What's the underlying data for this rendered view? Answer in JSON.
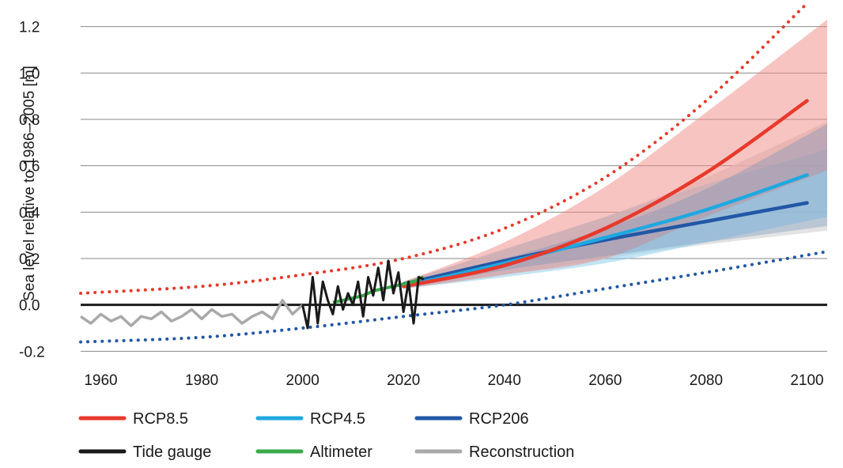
{
  "chart_data": {
    "type": "line",
    "ylabel": "Sea level relative to 1986–2005 [m]",
    "xlabel": "",
    "xlim": [
      1956,
      2104
    ],
    "ylim": [
      -0.25,
      1.25
    ],
    "x_ticks": [
      1960,
      1980,
      2000,
      2020,
      2040,
      2060,
      2080,
      2100
    ],
    "x_tick_labels": [
      "1960",
      "1980",
      "2000",
      "2020",
      "2040",
      "2060",
      "2080",
      "2100"
    ],
    "y_ticks": [
      -0.2,
      0.0,
      0.2,
      0.4,
      0.6,
      0.8,
      1.0,
      1.2
    ],
    "y_tick_labels": [
      "-0.2",
      "0.0",
      "0.2",
      "0.4",
      "0.6",
      "0.8",
      "1.0",
      "1.2"
    ],
    "grid": "horizontal",
    "legend_placement": "bottom",
    "legend": [
      {
        "key": "rcp85",
        "label": "RCP8.5"
      },
      {
        "key": "rcp45",
        "label": "RCP4.5"
      },
      {
        "key": "rcp26",
        "label": "RCP206"
      },
      {
        "key": "tide",
        "label": "Tide gauge"
      },
      {
        "key": "alt",
        "label": "Altimeter"
      },
      {
        "key": "recon",
        "label": "Reconstruction"
      }
    ],
    "colors": {
      "rcp85": "#e8392b",
      "rcp85_band": "#f08a84",
      "rcp45": "#1fa8e0",
      "rcp45_band": "#8fd0ec",
      "rcp26": "#2257a6",
      "rcp26_band": "#6f8fb9",
      "tide": "#1a1a1a",
      "alt": "#3aaa4a",
      "recon": "#a9a9a9",
      "zero_line": "#1a1a1a",
      "grid": "#8a8a8a",
      "gray_band": "#d9d9d9"
    },
    "series": [
      {
        "key": "rcp85",
        "name": "RCP8.5",
        "x": [
          2020,
          2040,
          2060,
          2080,
          2100
        ],
        "y": [
          0.08,
          0.17,
          0.33,
          0.57,
          0.88
        ]
      },
      {
        "key": "rcp45",
        "name": "RCP4.5",
        "x": [
          2020,
          2040,
          2060,
          2080,
          2100
        ],
        "y": [
          0.08,
          0.18,
          0.29,
          0.41,
          0.56
        ]
      },
      {
        "key": "rcp26",
        "name": "RCP206",
        "x": [
          2020,
          2040,
          2060,
          2080,
          2100
        ],
        "y": [
          0.09,
          0.19,
          0.28,
          0.36,
          0.44
        ]
      },
      {
        "key": "tide",
        "name": "Tide gauge",
        "x": [
          2000,
          2001,
          2002,
          2003,
          2004,
          2005,
          2006,
          2007,
          2008,
          2009,
          2010,
          2011,
          2012,
          2013,
          2014,
          2015,
          2016,
          2017,
          2018,
          2019,
          2020,
          2021,
          2022,
          2023,
          2024
        ],
        "y": [
          0.0,
          -0.1,
          0.12,
          -0.08,
          0.1,
          0.02,
          -0.04,
          0.08,
          -0.02,
          0.05,
          0.0,
          0.1,
          -0.05,
          0.12,
          0.04,
          0.16,
          0.02,
          0.19,
          0.05,
          0.14,
          -0.03,
          0.1,
          -0.08,
          0.12,
          0.11
        ]
      },
      {
        "key": "alt",
        "name": "Altimeter",
        "x": [
          2006,
          2008,
          2010,
          2012,
          2014,
          2016,
          2018,
          2020,
          2022,
          2024
        ],
        "y": [
          0.01,
          0.02,
          0.03,
          0.04,
          0.06,
          0.07,
          0.08,
          0.09,
          0.1,
          0.12
        ]
      },
      {
        "key": "recon",
        "name": "Reconstruction",
        "x": [
          1956,
          1958,
          1960,
          1962,
          1964,
          1966,
          1968,
          1970,
          1972,
          1974,
          1976,
          1978,
          1980,
          1982,
          1984,
          1986,
          1988,
          1990,
          1992,
          1994,
          1996,
          1998,
          2000
        ],
        "y": [
          -0.05,
          -0.08,
          -0.04,
          -0.07,
          -0.05,
          -0.09,
          -0.05,
          -0.06,
          -0.03,
          -0.07,
          -0.05,
          -0.02,
          -0.06,
          -0.02,
          -0.05,
          -0.04,
          -0.08,
          -0.05,
          -0.03,
          -0.06,
          0.02,
          -0.04,
          0.0
        ]
      },
      {
        "key": "upper_bound",
        "name": "",
        "x": [
          1956,
          1980,
          2000,
          2020,
          2040,
          2060,
          2080,
          2100
        ],
        "y": [
          0.05,
          0.08,
          0.13,
          0.2,
          0.33,
          0.55,
          0.88,
          1.3
        ]
      },
      {
        "key": "lower_bound",
        "name": "",
        "x": [
          1956,
          1980,
          2000,
          2020,
          2040,
          2060,
          2080,
          2104
        ],
        "y": [
          -0.16,
          -0.14,
          -0.1,
          -0.05,
          0.0,
          0.07,
          0.14,
          0.23
        ]
      }
    ],
    "bands": [
      {
        "key": "gray_band",
        "x": [
          2020,
          2040,
          2060,
          2080,
          2104
        ],
        "lower": [
          0.07,
          0.13,
          0.2,
          0.26,
          0.32
        ],
        "upper": [
          0.1,
          0.24,
          0.38,
          0.55,
          0.79
        ]
      },
      {
        "key": "rcp45_band",
        "x": [
          2020,
          2040,
          2060,
          2080,
          2104
        ],
        "lower": [
          0.07,
          0.12,
          0.18,
          0.27,
          0.38
        ],
        "upper": [
          0.1,
          0.24,
          0.38,
          0.52,
          0.67
        ]
      },
      {
        "key": "rcp85_band",
        "x": [
          2020,
          2040,
          2060,
          2080,
          2104
        ],
        "lower": [
          0.07,
          0.13,
          0.2,
          0.38,
          0.58
        ],
        "upper": [
          0.1,
          0.27,
          0.51,
          0.83,
          1.23
        ]
      }
    ]
  }
}
